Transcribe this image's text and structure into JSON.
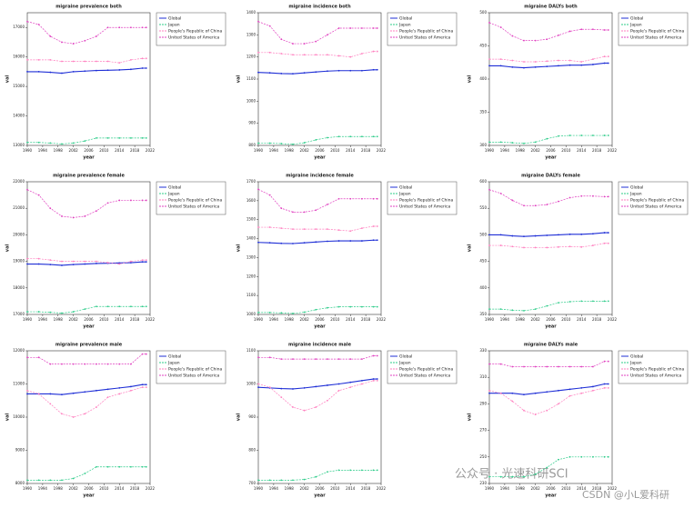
{
  "chart_data": [
    {
      "type": "line",
      "title": "migraine prevalence both",
      "x_label": "year",
      "y_label": "val",
      "x": [
        1990,
        1993,
        1996,
        1999,
        2002,
        2005,
        2008,
        2011,
        2014,
        2017,
        2020,
        2021
      ],
      "xlim": [
        1990,
        2022
      ],
      "xticks": [
        1990,
        1994,
        1998,
        2002,
        2006,
        2010,
        2014,
        2018,
        2022
      ],
      "ylim": [
        13000,
        17500
      ],
      "yticks": [
        13000,
        14000,
        15000,
        16000,
        17000
      ],
      "series": [
        {
          "name": "Global",
          "color": "#1f2fd6",
          "values": [
            15500,
            15500,
            15480,
            15450,
            15500,
            15520,
            15540,
            15550,
            15560,
            15580,
            15620,
            15620
          ]
        },
        {
          "name": "Japan",
          "color": "#2ecc8a",
          "values": [
            13100,
            13100,
            13080,
            13050,
            13080,
            13150,
            13250,
            13250,
            13250,
            13250,
            13250,
            13250
          ]
        },
        {
          "name": "People's Republic of China",
          "color": "#ff7fbf",
          "values": [
            15900,
            15900,
            15900,
            15850,
            15850,
            15850,
            15850,
            15850,
            15800,
            15900,
            15950,
            15950
          ]
        },
        {
          "name": "United States of America",
          "color": "#e040c0",
          "values": [
            17200,
            17100,
            16700,
            16500,
            16450,
            16550,
            16700,
            17000,
            17000,
            17000,
            17000,
            17000
          ]
        }
      ]
    },
    {
      "type": "line",
      "title": "migraine incidence both",
      "x_label": "year",
      "y_label": "val",
      "x": [
        1990,
        1993,
        1996,
        1999,
        2002,
        2005,
        2008,
        2011,
        2014,
        2017,
        2020,
        2021
      ],
      "xlim": [
        1990,
        2022
      ],
      "xticks": [
        1990,
        1994,
        1998,
        2002,
        2006,
        2010,
        2014,
        2018,
        2022
      ],
      "ylim": [
        800,
        1400
      ],
      "yticks": [
        800,
        900,
        1000,
        1100,
        1200,
        1300,
        1400
      ],
      "series": [
        {
          "name": "Global",
          "color": "#1f2fd6",
          "values": [
            1130,
            1128,
            1125,
            1124,
            1128,
            1132,
            1136,
            1138,
            1138,
            1138,
            1142,
            1142
          ]
        },
        {
          "name": "Japan",
          "color": "#2ecc8a",
          "values": [
            810,
            810,
            808,
            805,
            812,
            825,
            835,
            840,
            840,
            840,
            840,
            840
          ]
        },
        {
          "name": "People's Republic of China",
          "color": "#ff7fbf",
          "values": [
            1220,
            1220,
            1215,
            1210,
            1210,
            1210,
            1210,
            1205,
            1200,
            1215,
            1225,
            1225
          ]
        },
        {
          "name": "United States of America",
          "color": "#e040c0",
          "values": [
            1360,
            1340,
            1280,
            1260,
            1260,
            1270,
            1300,
            1330,
            1330,
            1330,
            1330,
            1330
          ]
        }
      ]
    },
    {
      "type": "line",
      "title": "migraine DALYs both",
      "x_label": "year",
      "y_label": "val",
      "x": [
        1990,
        1993,
        1996,
        1999,
        2002,
        2005,
        2008,
        2011,
        2014,
        2017,
        2020,
        2021
      ],
      "xlim": [
        1990,
        2022
      ],
      "xticks": [
        1990,
        1994,
        1998,
        2002,
        2006,
        2010,
        2014,
        2018,
        2022
      ],
      "ylim": [
        300,
        500
      ],
      "yticks": [
        300,
        350,
        400,
        450,
        500
      ],
      "series": [
        {
          "name": "Global",
          "color": "#1f2fd6",
          "values": [
            420,
            420,
            418,
            417,
            418,
            419,
            420,
            421,
            421,
            422,
            424,
            424
          ]
        },
        {
          "name": "Japan",
          "color": "#2ecc8a",
          "values": [
            305,
            305,
            304,
            303,
            305,
            310,
            314,
            315,
            315,
            315,
            315,
            315
          ]
        },
        {
          "name": "People's Republic of China",
          "color": "#ff7fbf",
          "values": [
            430,
            430,
            428,
            426,
            426,
            427,
            428,
            428,
            426,
            430,
            434,
            434
          ]
        },
        {
          "name": "United States of America",
          "color": "#e040c0",
          "values": [
            485,
            478,
            465,
            458,
            458,
            460,
            466,
            472,
            475,
            475,
            474,
            474
          ]
        }
      ]
    },
    {
      "type": "line",
      "title": "migraine prevalence female",
      "x_label": "year",
      "y_label": "val",
      "x": [
        1990,
        1993,
        1996,
        1999,
        2002,
        2005,
        2008,
        2011,
        2014,
        2017,
        2020,
        2021
      ],
      "xlim": [
        1990,
        2022
      ],
      "xticks": [
        1990,
        1994,
        1998,
        2002,
        2006,
        2010,
        2014,
        2018,
        2022
      ],
      "ylim": [
        17000,
        22000
      ],
      "yticks": [
        17000,
        18000,
        19000,
        20000,
        21000,
        22000
      ],
      "series": [
        {
          "name": "Global",
          "color": "#1f2fd6",
          "values": [
            18900,
            18900,
            18880,
            18850,
            18880,
            18900,
            18920,
            18930,
            18940,
            18950,
            18980,
            18980
          ]
        },
        {
          "name": "Japan",
          "color": "#2ecc8a",
          "values": [
            17100,
            17100,
            17080,
            17050,
            17100,
            17200,
            17300,
            17300,
            17300,
            17300,
            17300,
            17300
          ]
        },
        {
          "name": "People's Republic of China",
          "color": "#ff7fbf",
          "values": [
            19100,
            19100,
            19050,
            19000,
            19000,
            19000,
            19000,
            18950,
            18900,
            19000,
            19050,
            19050
          ]
        },
        {
          "name": "United States of America",
          "color": "#e040c0",
          "values": [
            21700,
            21500,
            21000,
            20700,
            20650,
            20700,
            20900,
            21200,
            21300,
            21300,
            21300,
            21300
          ]
        }
      ]
    },
    {
      "type": "line",
      "title": "migraine incidence female",
      "x_label": "year",
      "y_label": "val",
      "x": [
        1990,
        1993,
        1996,
        1999,
        2002,
        2005,
        2008,
        2011,
        2014,
        2017,
        2020,
        2021
      ],
      "xlim": [
        1990,
        2022
      ],
      "xticks": [
        1990,
        1994,
        1998,
        2002,
        2006,
        2010,
        2014,
        2018,
        2022
      ],
      "ylim": [
        1000,
        1700
      ],
      "yticks": [
        1000,
        1100,
        1200,
        1300,
        1400,
        1500,
        1600,
        1700
      ],
      "series": [
        {
          "name": "Global",
          "color": "#1f2fd6",
          "values": [
            1380,
            1378,
            1375,
            1374,
            1378,
            1382,
            1386,
            1388,
            1388,
            1388,
            1392,
            1392
          ]
        },
        {
          "name": "Japan",
          "color": "#2ecc8a",
          "values": [
            1010,
            1010,
            1008,
            1005,
            1012,
            1025,
            1035,
            1040,
            1040,
            1040,
            1040,
            1040
          ]
        },
        {
          "name": "People's Republic of China",
          "color": "#ff7fbf",
          "values": [
            1460,
            1460,
            1455,
            1450,
            1450,
            1450,
            1450,
            1445,
            1440,
            1455,
            1465,
            1465
          ]
        },
        {
          "name": "United States of America",
          "color": "#e040c0",
          "values": [
            1660,
            1630,
            1560,
            1540,
            1540,
            1550,
            1580,
            1610,
            1610,
            1610,
            1610,
            1610
          ]
        }
      ]
    },
    {
      "type": "line",
      "title": "migraine DALYs female",
      "x_label": "year",
      "y_label": "val",
      "x": [
        1990,
        1993,
        1996,
        1999,
        2002,
        2005,
        2008,
        2011,
        2014,
        2017,
        2020,
        2021
      ],
      "xlim": [
        1990,
        2022
      ],
      "xticks": [
        1990,
        1994,
        1998,
        2002,
        2006,
        2010,
        2014,
        2018,
        2022
      ],
      "ylim": [
        350,
        600
      ],
      "yticks": [
        350,
        400,
        450,
        500,
        550,
        600
      ],
      "series": [
        {
          "name": "Global",
          "color": "#1f2fd6",
          "values": [
            500,
            500,
            498,
            497,
            498,
            499,
            500,
            501,
            501,
            502,
            504,
            504
          ]
        },
        {
          "name": "Japan",
          "color": "#2ecc8a",
          "values": [
            360,
            360,
            358,
            357,
            360,
            366,
            372,
            374,
            375,
            375,
            375,
            375
          ]
        },
        {
          "name": "People's Republic of China",
          "color": "#ff7fbf",
          "values": [
            480,
            480,
            478,
            476,
            476,
            476,
            477,
            478,
            477,
            480,
            484,
            484
          ]
        },
        {
          "name": "United States of America",
          "color": "#e040c0",
          "values": [
            585,
            578,
            565,
            555,
            555,
            557,
            563,
            570,
            573,
            573,
            572,
            572
          ]
        }
      ]
    },
    {
      "type": "line",
      "title": "migraine prevalence male",
      "x_label": "year",
      "y_label": "val",
      "x": [
        1990,
        1993,
        1996,
        1999,
        2002,
        2005,
        2008,
        2011,
        2014,
        2017,
        2020,
        2021
      ],
      "xlim": [
        1990,
        2022
      ],
      "xticks": [
        1990,
        1994,
        1998,
        2002,
        2006,
        2010,
        2014,
        2018,
        2022
      ],
      "ylim": [
        8000,
        12000
      ],
      "yticks": [
        8000,
        9000,
        10000,
        11000,
        12000
      ],
      "series": [
        {
          "name": "Global",
          "color": "#1f2fd6",
          "values": [
            10700,
            10700,
            10700,
            10680,
            10720,
            10760,
            10800,
            10840,
            10880,
            10920,
            10980,
            10980
          ]
        },
        {
          "name": "Japan",
          "color": "#2ecc8a",
          "values": [
            8100,
            8100,
            8100,
            8100,
            8150,
            8300,
            8500,
            8500,
            8500,
            8500,
            8500,
            8500
          ]
        },
        {
          "name": "People's Republic of China",
          "color": "#ff7fbf",
          "values": [
            10800,
            10700,
            10400,
            10100,
            10000,
            10100,
            10300,
            10600,
            10700,
            10800,
            10900,
            10900
          ]
        },
        {
          "name": "United States of America",
          "color": "#e040c0",
          "values": [
            11800,
            11800,
            11600,
            11600,
            11600,
            11600,
            11600,
            11600,
            11600,
            11600,
            11900,
            11900
          ]
        }
      ]
    },
    {
      "type": "line",
      "title": "migraine incidence male",
      "x_label": "year",
      "y_label": "val",
      "x": [
        1990,
        1993,
        1996,
        1999,
        2002,
        2005,
        2008,
        2011,
        2014,
        2017,
        2020,
        2021
      ],
      "xlim": [
        1990,
        2022
      ],
      "xticks": [
        1990,
        1994,
        1998,
        2002,
        2006,
        2010,
        2014,
        2018,
        2022
      ],
      "ylim": [
        700,
        1100
      ],
      "yticks": [
        700,
        800,
        900,
        1000,
        1100
      ],
      "series": [
        {
          "name": "Global",
          "color": "#1f2fd6",
          "values": [
            990,
            988,
            986,
            985,
            988,
            992,
            996,
            1000,
            1005,
            1010,
            1015,
            1015
          ]
        },
        {
          "name": "Japan",
          "color": "#2ecc8a",
          "values": [
            710,
            710,
            710,
            710,
            712,
            720,
            735,
            740,
            740,
            740,
            740,
            740
          ]
        },
        {
          "name": "People's Republic of China",
          "color": "#ff7fbf",
          "values": [
            1000,
            990,
            960,
            930,
            920,
            930,
            950,
            980,
            990,
            1000,
            1010,
            1010
          ]
        },
        {
          "name": "United States of America",
          "color": "#e040c0",
          "values": [
            1080,
            1080,
            1075,
            1075,
            1075,
            1075,
            1075,
            1075,
            1075,
            1075,
            1085,
            1085
          ]
        }
      ]
    },
    {
      "type": "line",
      "title": "migraine DALYs male",
      "x_label": "year",
      "y_label": "val",
      "x": [
        1990,
        1993,
        1996,
        1999,
        2002,
        2005,
        2008,
        2011,
        2014,
        2017,
        2020,
        2021
      ],
      "xlim": [
        1990,
        2022
      ],
      "xticks": [
        1990,
        1994,
        1998,
        2002,
        2006,
        2010,
        2014,
        2018,
        2022
      ],
      "ylim": [
        230,
        330
      ],
      "yticks": [
        230,
        250,
        270,
        290,
        310,
        330
      ],
      "series": [
        {
          "name": "Global",
          "color": "#1f2fd6",
          "values": [
            298,
            298,
            298,
            297,
            298,
            299,
            300,
            301,
            302,
            303,
            305,
            305
          ]
        },
        {
          "name": "Japan",
          "color": "#2ecc8a",
          "values": [
            235,
            235,
            235,
            235,
            237,
            242,
            248,
            250,
            250,
            250,
            250,
            250
          ]
        },
        {
          "name": "People's Republic of China",
          "color": "#ff7fbf",
          "values": [
            300,
            298,
            292,
            285,
            282,
            285,
            290,
            296,
            298,
            300,
            302,
            302
          ]
        },
        {
          "name": "United States of America",
          "color": "#e040c0",
          "values": [
            320,
            320,
            318,
            318,
            318,
            318,
            318,
            318,
            318,
            318,
            322,
            322
          ]
        }
      ]
    }
  ],
  "watermark": [
    "公众号 · 光速科研SCI",
    "CSDN @小L爱科研"
  ]
}
